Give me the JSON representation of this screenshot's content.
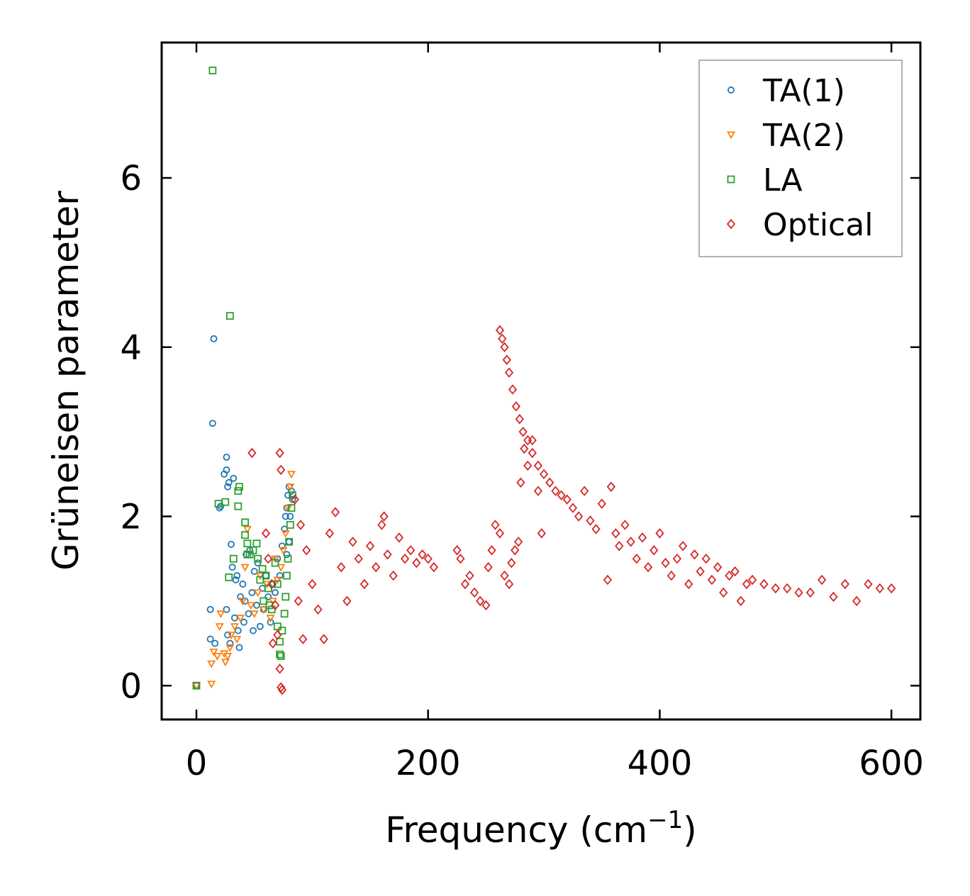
{
  "chart_data": {
    "type": "scatter",
    "title": "",
    "xlabel": "Frequency (cm",
    "xlabel_sup": "−1",
    "xlabel_close": ")",
    "ylabel": "Grüneisen parameter",
    "xlim": [
      -30,
      625
    ],
    "ylim": [
      -0.4,
      7.6
    ],
    "xticks": [
      0,
      200,
      400,
      600
    ],
    "yticks": [
      0,
      2,
      4,
      6
    ],
    "grid": false,
    "legend_position": "top-right",
    "series": [
      {
        "name": "TA(1)",
        "marker": "circle",
        "color": "#1f77b4",
        "points": [
          [
            0,
            0
          ],
          [
            12,
            0.9
          ],
          [
            12,
            0.55
          ],
          [
            14,
            3.1
          ],
          [
            15,
            4.1
          ],
          [
            16,
            0.5
          ],
          [
            20,
            2.1
          ],
          [
            21,
            2.12
          ],
          [
            24,
            2.5
          ],
          [
            26,
            2.55
          ],
          [
            26,
            2.7
          ],
          [
            27,
            2.35
          ],
          [
            28,
            2.4
          ],
          [
            26,
            0.9
          ],
          [
            27,
            0.6
          ],
          [
            29,
            0.5
          ],
          [
            30,
            1.67
          ],
          [
            31,
            1.4
          ],
          [
            32,
            2.45
          ],
          [
            33,
            0.8
          ],
          [
            34,
            1.25
          ],
          [
            35,
            1.3
          ],
          [
            36,
            0.65
          ],
          [
            37,
            0.45
          ],
          [
            38,
            1.05
          ],
          [
            40,
            1.2
          ],
          [
            41,
            0.75
          ],
          [
            42,
            1.0
          ],
          [
            43,
            1.55
          ],
          [
            45,
            0.85
          ],
          [
            46,
            1.6
          ],
          [
            48,
            1.1
          ],
          [
            49,
            0.65
          ],
          [
            50,
            1.35
          ],
          [
            52,
            0.95
          ],
          [
            53,
            1.45
          ],
          [
            55,
            0.7
          ],
          [
            57,
            1.15
          ],
          [
            58,
            0.9
          ],
          [
            60,
            1.3
          ],
          [
            62,
            1.05
          ],
          [
            64,
            0.75
          ],
          [
            66,
            1.2
          ],
          [
            68,
            1.1
          ],
          [
            70,
            1.5
          ],
          [
            72,
            1.3
          ],
          [
            74,
            1.65
          ],
          [
            76,
            1.85
          ],
          [
            77,
            2.0
          ],
          [
            78,
            2.1
          ],
          [
            79,
            2.25
          ],
          [
            80,
            2.35
          ],
          [
            81,
            2.0
          ],
          [
            82,
            2.3
          ],
          [
            83,
            2.2
          ],
          [
            78,
            1.55
          ],
          [
            80,
            1.7
          ]
        ]
      },
      {
        "name": "TA(2)",
        "marker": "triangle-down",
        "color": "#ff7f0e",
        "points": [
          [
            0,
            0
          ],
          [
            13,
            0.02
          ],
          [
            13,
            0.26
          ],
          [
            15,
            0.4
          ],
          [
            18,
            0.35
          ],
          [
            20,
            0.7
          ],
          [
            21,
            0.85
          ],
          [
            24,
            0.38
          ],
          [
            25,
            0.28
          ],
          [
            27,
            0.35
          ],
          [
            29,
            0.45
          ],
          [
            30,
            0.6
          ],
          [
            33,
            0.7
          ],
          [
            35,
            0.55
          ],
          [
            38,
            0.8
          ],
          [
            40,
            1.0
          ],
          [
            42,
            1.4
          ],
          [
            44,
            1.85
          ],
          [
            47,
            0.95
          ],
          [
            50,
            0.85
          ],
          [
            53,
            1.1
          ],
          [
            55,
            1.3
          ],
          [
            58,
            0.9
          ],
          [
            61,
            1.2
          ],
          [
            64,
            0.8
          ],
          [
            66,
            1.0
          ],
          [
            68,
            1.5
          ],
          [
            70,
            1.25
          ],
          [
            73,
            1.4
          ],
          [
            75,
            1.6
          ],
          [
            77,
            1.8
          ],
          [
            79,
            2.1
          ],
          [
            81,
            2.35
          ],
          [
            82,
            2.5
          ]
        ]
      },
      {
        "name": "LA",
        "marker": "square",
        "color": "#2ca02c",
        "points": [
          [
            0,
            0
          ],
          [
            14,
            7.27
          ],
          [
            29,
            4.37
          ],
          [
            19,
            2.15
          ],
          [
            25,
            2.17
          ],
          [
            36,
            2.3
          ],
          [
            37,
            2.35
          ],
          [
            36,
            2.12
          ],
          [
            42,
            1.93
          ],
          [
            42,
            1.78
          ],
          [
            44,
            1.68
          ],
          [
            44,
            1.55
          ],
          [
            46,
            1.55
          ],
          [
            49,
            1.6
          ],
          [
            52,
            1.68
          ],
          [
            53,
            1.5
          ],
          [
            55,
            1.25
          ],
          [
            57,
            1.38
          ],
          [
            58,
            1.0
          ],
          [
            60,
            1.3
          ],
          [
            62,
            1.15
          ],
          [
            63,
            0.95
          ],
          [
            65,
            0.9
          ],
          [
            68,
            1.45
          ],
          [
            70,
            1.2
          ],
          [
            70,
            0.7
          ],
          [
            72,
            0.52
          ],
          [
            72,
            0.37
          ],
          [
            73,
            0.35
          ],
          [
            74,
            0.65
          ],
          [
            76,
            0.85
          ],
          [
            77,
            1.05
          ],
          [
            78,
            1.3
          ],
          [
            79,
            1.5
          ],
          [
            80,
            1.7
          ],
          [
            81,
            1.9
          ],
          [
            82,
            2.1
          ],
          [
            83,
            2.25
          ],
          [
            28,
            1.28
          ],
          [
            32,
            1.5
          ]
        ]
      },
      {
        "name": "Optical",
        "marker": "diamond",
        "color": "#d62728",
        "points": [
          [
            48,
            2.75
          ],
          [
            72,
            2.75
          ],
          [
            73,
            2.55
          ],
          [
            60,
            1.8
          ],
          [
            62,
            1.5
          ],
          [
            65,
            1.2
          ],
          [
            68,
            0.95
          ],
          [
            70,
            0.6
          ],
          [
            72,
            0.2
          ],
          [
            73,
            -0.02
          ],
          [
            74,
            -0.05
          ],
          [
            66,
            0.5
          ],
          [
            85,
            2.2
          ],
          [
            90,
            1.9
          ],
          [
            95,
            1.6
          ],
          [
            100,
            1.2
          ],
          [
            105,
            0.9
          ],
          [
            110,
            0.55
          ],
          [
            92,
            0.55
          ],
          [
            88,
            1.0
          ],
          [
            115,
            1.8
          ],
          [
            120,
            2.05
          ],
          [
            125,
            1.4
          ],
          [
            130,
            1.0
          ],
          [
            135,
            1.7
          ],
          [
            140,
            1.5
          ],
          [
            145,
            1.2
          ],
          [
            150,
            1.65
          ],
          [
            155,
            1.4
          ],
          [
            160,
            1.9
          ],
          [
            162,
            2.0
          ],
          [
            165,
            1.55
          ],
          [
            170,
            1.3
          ],
          [
            175,
            1.75
          ],
          [
            180,
            1.5
          ],
          [
            185,
            1.6
          ],
          [
            190,
            1.45
          ],
          [
            195,
            1.55
          ],
          [
            200,
            1.5
          ],
          [
            205,
            1.4
          ],
          [
            225,
            1.6
          ],
          [
            228,
            1.5
          ],
          [
            232,
            1.2
          ],
          [
            236,
            1.3
          ],
          [
            240,
            1.1
          ],
          [
            245,
            1.0
          ],
          [
            250,
            0.95
          ],
          [
            252,
            1.4
          ],
          [
            255,
            1.6
          ],
          [
            258,
            1.9
          ],
          [
            262,
            1.8
          ],
          [
            266,
            1.3
          ],
          [
            270,
            1.2
          ],
          [
            272,
            1.45
          ],
          [
            275,
            1.6
          ],
          [
            278,
            1.7
          ],
          [
            280,
            2.4
          ],
          [
            283,
            2.8
          ],
          [
            286,
            2.6
          ],
          [
            290,
            2.9
          ],
          [
            295,
            2.3
          ],
          [
            298,
            1.8
          ],
          [
            262,
            4.2
          ],
          [
            264,
            4.1
          ],
          [
            266,
            4.0
          ],
          [
            268,
            3.85
          ],
          [
            270,
            3.7
          ],
          [
            273,
            3.5
          ],
          [
            276,
            3.3
          ],
          [
            279,
            3.15
          ],
          [
            282,
            3.0
          ],
          [
            286,
            2.9
          ],
          [
            290,
            2.75
          ],
          [
            295,
            2.6
          ],
          [
            300,
            2.5
          ],
          [
            305,
            2.4
          ],
          [
            310,
            2.3
          ],
          [
            315,
            2.25
          ],
          [
            320,
            2.2
          ],
          [
            325,
            2.1
          ],
          [
            330,
            2.0
          ],
          [
            335,
            2.3
          ],
          [
            340,
            1.95
          ],
          [
            345,
            1.85
          ],
          [
            350,
            2.15
          ],
          [
            355,
            1.25
          ],
          [
            358,
            2.35
          ],
          [
            362,
            1.8
          ],
          [
            365,
            1.65
          ],
          [
            370,
            1.9
          ],
          [
            375,
            1.7
          ],
          [
            380,
            1.5
          ],
          [
            385,
            1.75
          ],
          [
            390,
            1.4
          ],
          [
            395,
            1.6
          ],
          [
            400,
            1.8
          ],
          [
            405,
            1.45
          ],
          [
            410,
            1.3
          ],
          [
            415,
            1.5
          ],
          [
            420,
            1.65
          ],
          [
            425,
            1.2
          ],
          [
            430,
            1.55
          ],
          [
            435,
            1.35
          ],
          [
            440,
            1.5
          ],
          [
            445,
            1.25
          ],
          [
            450,
            1.4
          ],
          [
            455,
            1.1
          ],
          [
            460,
            1.3
          ],
          [
            465,
            1.35
          ],
          [
            470,
            1.0
          ],
          [
            475,
            1.2
          ],
          [
            480,
            1.25
          ],
          [
            490,
            1.2
          ],
          [
            500,
            1.15
          ],
          [
            510,
            1.15
          ],
          [
            520,
            1.1
          ],
          [
            530,
            1.1
          ],
          [
            540,
            1.25
          ],
          [
            550,
            1.05
          ],
          [
            560,
            1.2
          ],
          [
            570,
            1.0
          ],
          [
            580,
            1.2
          ],
          [
            590,
            1.15
          ],
          [
            600,
            1.15
          ]
        ]
      }
    ]
  }
}
